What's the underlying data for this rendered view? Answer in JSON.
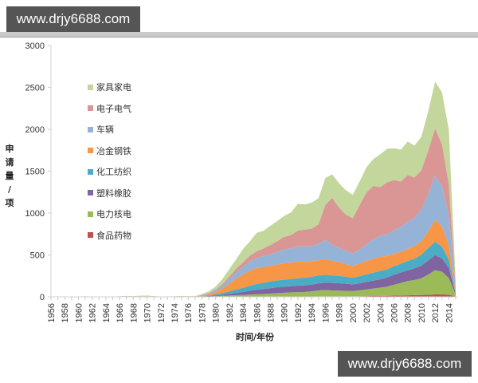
{
  "watermarks": {
    "top": "www.drjy6688.com",
    "bottom": "www.drjy6688.com"
  },
  "chart_data": {
    "type": "area",
    "stacked": true,
    "title": "",
    "xlabel": "时间/年份",
    "ylabel": "申请量/项",
    "ylabel_chars": [
      "申",
      "请",
      "量",
      "/",
      "项"
    ],
    "ylim": [
      0,
      3000
    ],
    "yticks": [
      0,
      500,
      1000,
      1500,
      2000,
      2500,
      3000
    ],
    "grid": false,
    "legend_position": "upper-left inside",
    "x": [
      1956,
      1957,
      1958,
      1959,
      1960,
      1961,
      1962,
      1963,
      1964,
      1965,
      1966,
      1967,
      1968,
      1969,
      1970,
      1971,
      1972,
      1973,
      1974,
      1975,
      1976,
      1977,
      1978,
      1979,
      1980,
      1981,
      1982,
      1983,
      1984,
      1985,
      1986,
      1987,
      1988,
      1989,
      1990,
      1991,
      1992,
      1993,
      1994,
      1995,
      1996,
      1997,
      1998,
      1999,
      2000,
      2001,
      2002,
      2003,
      2004,
      2005,
      2006,
      2007,
      2008,
      2009,
      2010,
      2011,
      2012,
      2013,
      2014,
      2015
    ],
    "xtick_labels": [
      "1956",
      "1958",
      "1960",
      "1962",
      "1964",
      "1966",
      "1968",
      "1970",
      "1972",
      "1974",
      "1976",
      "1978",
      "1980",
      "1982",
      "1984",
      "1986",
      "1988",
      "1990",
      "1992",
      "1994",
      "1996",
      "1998",
      "2000",
      "2002",
      "2004",
      "2006",
      "2008",
      "2010",
      "2012",
      "2014"
    ],
    "series": [
      {
        "name": "食品药物",
        "color": "#c0504d",
        "values": [
          0,
          0,
          0,
          0,
          0,
          0,
          0,
          0,
          0,
          0,
          0,
          0,
          0,
          0,
          0,
          0,
          0,
          0,
          0,
          0,
          0,
          0,
          0,
          0,
          0,
          1,
          1,
          2,
          2,
          3,
          3,
          3,
          4,
          4,
          4,
          5,
          5,
          5,
          5,
          6,
          6,
          6,
          6,
          6,
          6,
          7,
          8,
          9,
          10,
          12,
          14,
          16,
          18,
          20,
          22,
          25,
          28,
          30,
          25,
          5
        ]
      },
      {
        "name": "电力核电",
        "color": "#9bbb59",
        "values": [
          0,
          0,
          0,
          0,
          1,
          2,
          1,
          0,
          0,
          0,
          2,
          3,
          2,
          3,
          4,
          2,
          1,
          1,
          2,
          3,
          2,
          1,
          3,
          5,
          8,
          12,
          15,
          18,
          20,
          24,
          28,
          30,
          35,
          40,
          45,
          48,
          50,
          52,
          60,
          70,
          75,
          70,
          68,
          65,
          62,
          70,
          80,
          90,
          100,
          110,
          130,
          150,
          170,
          180,
          200,
          240,
          290,
          270,
          200,
          20
        ]
      },
      {
        "name": "塑料橡胶",
        "color": "#8064a2",
        "values": [
          0,
          0,
          0,
          0,
          0,
          0,
          0,
          0,
          0,
          0,
          0,
          0,
          0,
          0,
          0,
          0,
          0,
          0,
          0,
          0,
          0,
          0,
          2,
          4,
          8,
          12,
          20,
          28,
          35,
          45,
          55,
          60,
          65,
          70,
          72,
          74,
          78,
          80,
          82,
          85,
          88,
          90,
          88,
          85,
          80,
          85,
          90,
          95,
          100,
          110,
          120,
          125,
          130,
          140,
          150,
          170,
          180,
          160,
          120,
          10
        ]
      },
      {
        "name": "化工纺织",
        "color": "#4bacc6",
        "values": [
          0,
          0,
          0,
          0,
          0,
          0,
          0,
          0,
          0,
          0,
          0,
          0,
          0,
          0,
          0,
          0,
          0,
          0,
          0,
          0,
          0,
          0,
          3,
          6,
          12,
          20,
          30,
          40,
          50,
          60,
          68,
          75,
          80,
          82,
          85,
          86,
          88,
          90,
          92,
          95,
          95,
          90,
          88,
          85,
          80,
          85,
          90,
          95,
          100,
          95,
          100,
          105,
          110,
          115,
          130,
          150,
          160,
          140,
          100,
          8
        ]
      },
      {
        "name": "冶金钢铁",
        "color": "#f79646",
        "values": [
          0,
          0,
          0,
          0,
          0,
          0,
          0,
          0,
          0,
          0,
          0,
          0,
          0,
          0,
          0,
          0,
          0,
          0,
          0,
          0,
          0,
          2,
          8,
          15,
          30,
          55,
          90,
          130,
          160,
          180,
          190,
          190,
          185,
          190,
          195,
          195,
          200,
          190,
          185,
          180,
          185,
          175,
          165,
          150,
          140,
          150,
          160,
          165,
          170,
          160,
          150,
          140,
          145,
          150,
          160,
          200,
          260,
          240,
          170,
          15
        ]
      },
      {
        "name": "车辆",
        "color": "#95b3d7",
        "values": [
          0,
          0,
          0,
          0,
          0,
          0,
          0,
          0,
          0,
          0,
          0,
          0,
          0,
          0,
          0,
          0,
          0,
          0,
          0,
          0,
          0,
          1,
          4,
          10,
          20,
          35,
          55,
          75,
          90,
          110,
          120,
          130,
          140,
          150,
          165,
          170,
          180,
          185,
          180,
          200,
          230,
          190,
          170,
          160,
          150,
          170,
          200,
          230,
          250,
          260,
          280,
          300,
          320,
          340,
          380,
          440,
          530,
          480,
          350,
          30
        ]
      },
      {
        "name": "电子电气",
        "color": "#da9694",
        "values": [
          0,
          0,
          0,
          0,
          0,
          0,
          0,
          0,
          0,
          0,
          0,
          0,
          0,
          0,
          0,
          0,
          0,
          0,
          0,
          0,
          0,
          1,
          3,
          6,
          10,
          18,
          30,
          45,
          55,
          70,
          80,
          90,
          110,
          130,
          150,
          160,
          190,
          200,
          210,
          230,
          420,
          560,
          480,
          430,
          420,
          530,
          620,
          640,
          580,
          620,
          600,
          540,
          560,
          480,
          470,
          520,
          560,
          500,
          380,
          30
        ]
      },
      {
        "name": "家具家电",
        "color": "#c3d69b",
        "values": [
          0,
          0,
          0,
          2,
          3,
          5,
          3,
          2,
          1,
          2,
          5,
          8,
          6,
          10,
          12,
          6,
          2,
          3,
          5,
          8,
          6,
          3,
          10,
          20,
          35,
          60,
          90,
          110,
          160,
          170,
          220,
          210,
          230,
          240,
          250,
          270,
          320,
          300,
          310,
          310,
          320,
          280,
          290,
          290,
          280,
          280,
          300,
          320,
          390,
          400,
          380,
          380,
          400,
          380,
          400,
          470,
          560,
          620,
          650,
          60
        ]
      }
    ]
  }
}
